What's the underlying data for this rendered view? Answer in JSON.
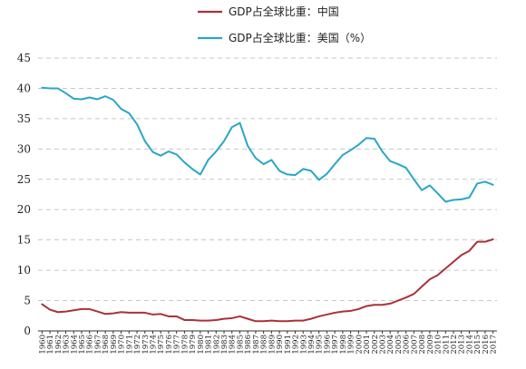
{
  "chart_data": {
    "type": "line",
    "title": "",
    "xlabel": "",
    "ylabel": "",
    "ylim": [
      0,
      45
    ],
    "yticks": [
      0,
      5,
      10,
      15,
      20,
      25,
      30,
      35,
      40,
      45
    ],
    "grid": "horizontal-dashed",
    "legend_position": "top-center",
    "x": [
      1960,
      1961,
      1962,
      1963,
      1964,
      1965,
      1966,
      1967,
      1968,
      1969,
      1970,
      1971,
      1972,
      1973,
      1974,
      1975,
      1976,
      1977,
      1978,
      1979,
      1980,
      1981,
      1982,
      1983,
      1984,
      1985,
      1986,
      1987,
      1988,
      1989,
      1990,
      1991,
      1992,
      1993,
      1994,
      1995,
      1996,
      1997,
      1998,
      1999,
      2000,
      2001,
      2002,
      2003,
      2004,
      2005,
      2006,
      2007,
      2008,
      2009,
      2010,
      2011,
      2012,
      2013,
      2014,
      2015,
      2016,
      2017
    ],
    "series": [
      {
        "name": "GDP占全球比重：中国",
        "color": "#a8323a",
        "values": [
          4.4,
          3.5,
          3.1,
          3.2,
          3.4,
          3.6,
          3.6,
          3.2,
          2.8,
          2.9,
          3.1,
          3.0,
          3.0,
          3.0,
          2.7,
          2.8,
          2.4,
          2.4,
          1.8,
          1.8,
          1.7,
          1.7,
          1.8,
          2.0,
          2.1,
          2.4,
          2.0,
          1.6,
          1.6,
          1.7,
          1.6,
          1.6,
          1.7,
          1.7,
          2.0,
          2.4,
          2.7,
          3.0,
          3.2,
          3.3,
          3.6,
          4.1,
          4.3,
          4.3,
          4.5,
          5.0,
          5.5,
          6.1,
          7.3,
          8.5,
          9.2,
          10.3,
          11.4,
          12.5,
          13.2,
          14.7,
          14.7,
          15.1
        ]
      },
      {
        "name": "GDP占全球比重：美国（%）",
        "color": "#2aa6c7",
        "values": [
          40.1,
          40.0,
          40.0,
          39.2,
          38.3,
          38.2,
          38.5,
          38.2,
          38.7,
          38.1,
          36.6,
          35.9,
          34.1,
          31.3,
          29.5,
          28.9,
          29.6,
          29.1,
          27.8,
          26.7,
          25.8,
          28.2,
          29.6,
          31.3,
          33.6,
          34.3,
          30.5,
          28.5,
          27.5,
          28.2,
          26.4,
          25.8,
          25.7,
          26.7,
          26.4,
          24.9,
          25.9,
          27.5,
          29.0,
          29.8,
          30.7,
          31.8,
          31.7,
          29.6,
          28.0,
          27.5,
          26.9,
          25.0,
          23.2,
          24.0,
          22.7,
          21.3,
          21.6,
          21.7,
          22.0,
          24.3,
          24.6,
          24.1
        ]
      }
    ]
  }
}
